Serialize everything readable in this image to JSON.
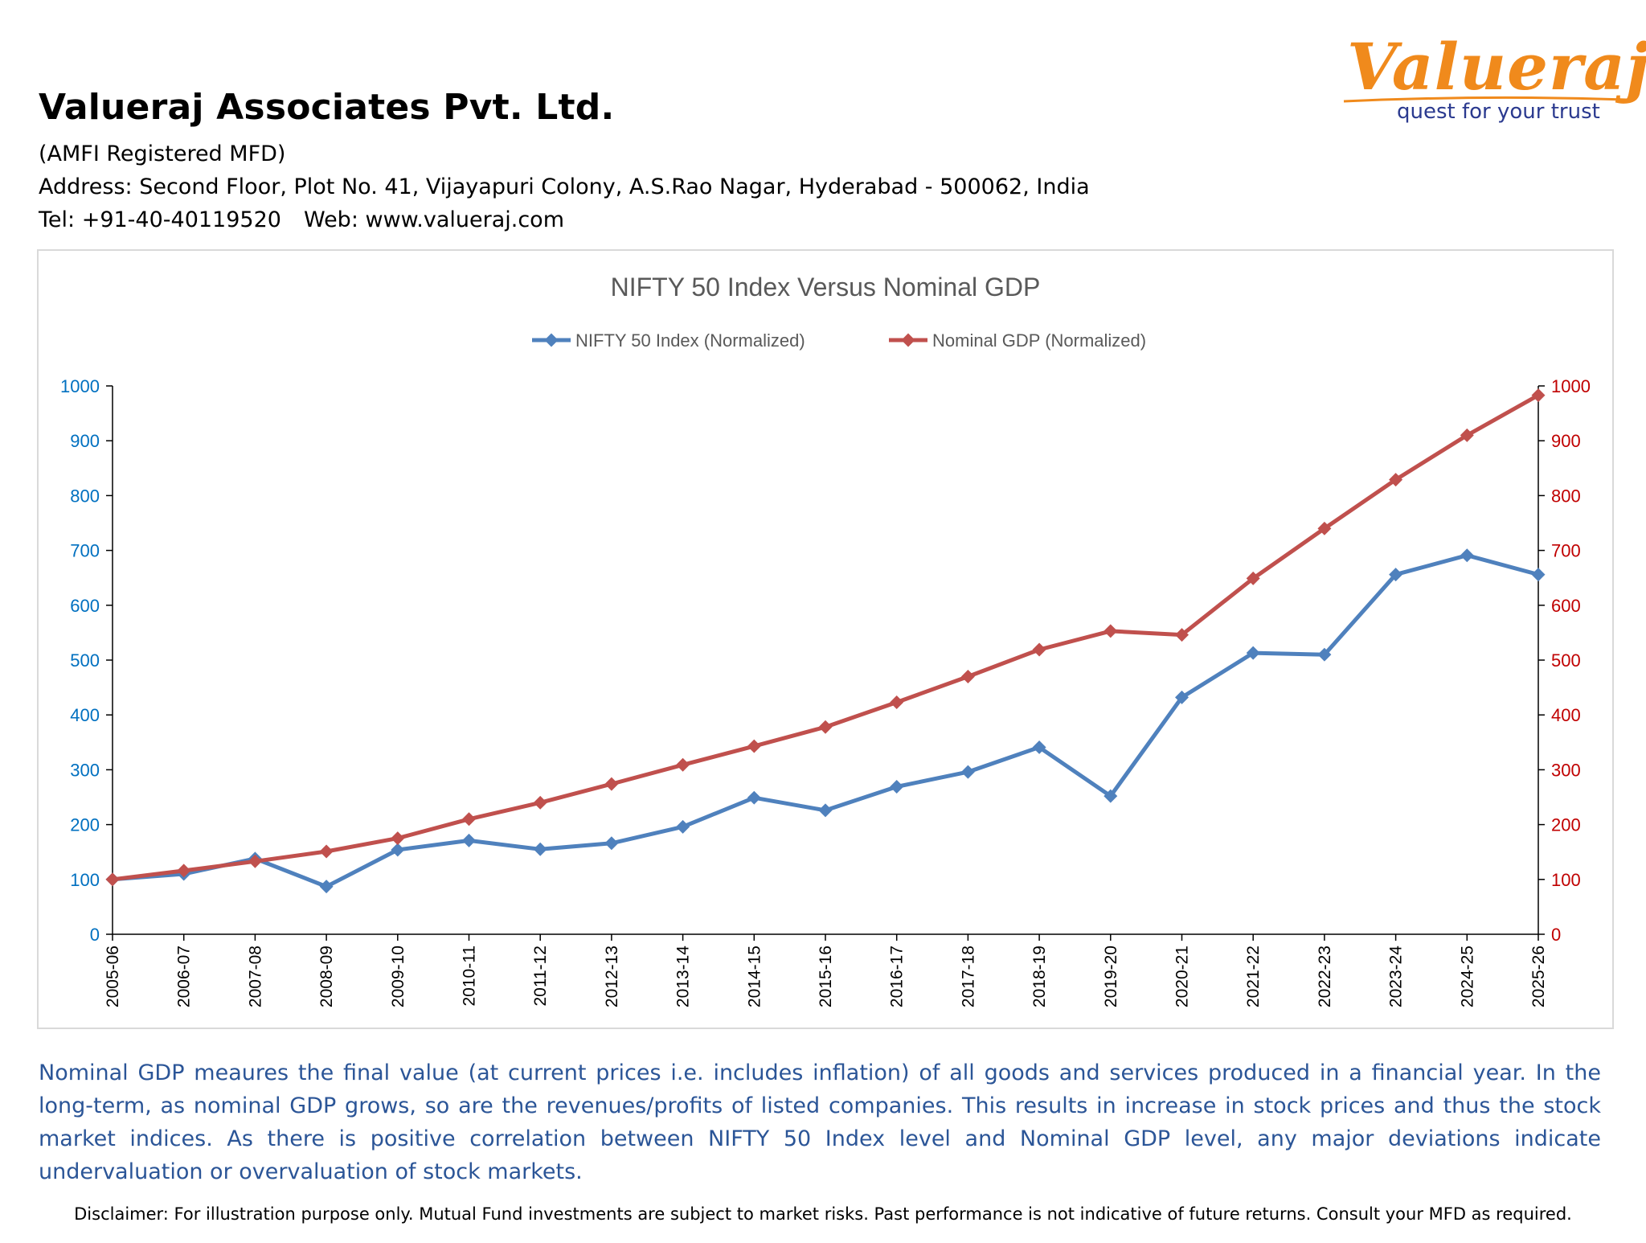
{
  "header": {
    "company_name": "Valueraj Associates Pvt. Ltd.",
    "registration": "(AMFI Registered MFD)",
    "address": "Address: Second Floor, Plot No. 41, Vijayapuri Colony, A.S.Rao Nagar, Hyderabad - 500062, India",
    "tel": "Tel: +91-40-40119520",
    "web": "Web: www.valueraj.com"
  },
  "logo": {
    "word": "Valueraj",
    "tagline": "quest for your trust",
    "colors": {
      "word": "#f08a1c",
      "tagline": "#2b3a8f"
    }
  },
  "chart_data": {
    "type": "line",
    "title": "NIFTY 50 Index Versus Nominal GDP",
    "categories": [
      "2005-06",
      "2006-07",
      "2007-08",
      "2008-09",
      "2009-10",
      "2010-11",
      "2011-12",
      "2012-13",
      "2013-14",
      "2014-15",
      "2015-16",
      "2016-17",
      "2017-18",
      "2018-19",
      "2019-20",
      "2020-21",
      "2021-22",
      "2022-23",
      "2023-24",
      "2024-25",
      "2025-26"
    ],
    "series": [
      {
        "name": "NIFTY 50 Index (Normalized)",
        "color": "#4f81bd",
        "axis": "left",
        "values": [
          100,
          110,
          138,
          87,
          154,
          171,
          155,
          166,
          196,
          249,
          226,
          269,
          296,
          341,
          252,
          432,
          513,
          510,
          656,
          691,
          656
        ]
      },
      {
        "name": "Nominal GDP (Normalized)",
        "color": "#c0504d",
        "axis": "right",
        "values": [
          100,
          116,
          133,
          151,
          175,
          210,
          240,
          274,
          309,
          343,
          378,
          423,
          470,
          519,
          553,
          546,
          649,
          740,
          829,
          910,
          983
        ]
      }
    ],
    "y_left": {
      "min": 0,
      "max": 1000,
      "step": 100,
      "color": "#0070c0"
    },
    "y_right": {
      "min": 0,
      "max": 1000,
      "step": 100,
      "color": "#c00000"
    },
    "legend": "top",
    "grid": false,
    "xlabel": "",
    "ylabel": ""
  },
  "note": "Nominal GDP meaures the final value (at current prices i.e. includes inflation) of all goods and services produced in a financial year. In the long-term, as nominal GDP grows, so are the revenues/profits of listed companies. This results in increase in stock prices and thus the stock market indices. As there is positive correlation between NIFTY 50 Index level and Nominal GDP level, any major deviations indicate undervaluation or overvaluation of stock markets.",
  "disclaimer": "Disclaimer: For illustration purpose only. Mutual Fund investments are subject to market risks. Past performance is not indicative of future returns. Consult your MFD as required."
}
